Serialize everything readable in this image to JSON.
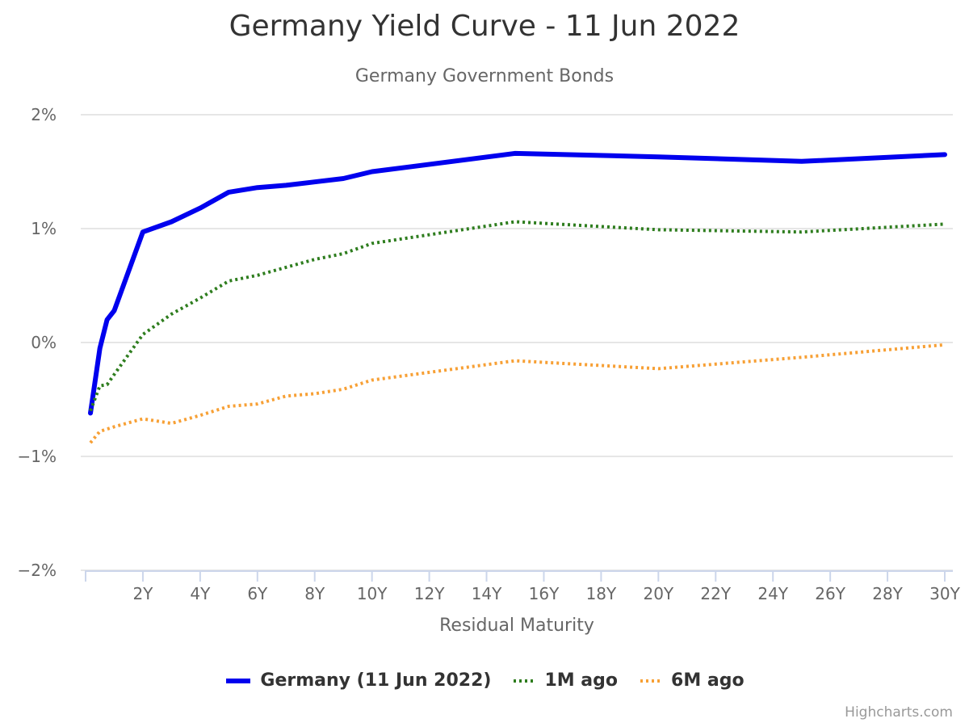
{
  "chart": {
    "title": "Germany Yield Curve - 11 Jun 2022",
    "subtitle": "Germany Government Bonds",
    "credits": "Highcharts.com"
  },
  "chart_data": {
    "type": "line",
    "title": "Germany Yield Curve - 11 Jun 2022",
    "subtitle": "Germany Government Bonds",
    "xlabel": "Residual Maturity",
    "ylabel": "",
    "xlim": [
      0,
      30
    ],
    "ylim": [
      -2,
      2
    ],
    "x_ticks": [
      2,
      4,
      6,
      8,
      10,
      12,
      14,
      16,
      18,
      20,
      22,
      24,
      26,
      28,
      30
    ],
    "x_tick_labels": [
      "2Y",
      "4Y",
      "6Y",
      "8Y",
      "10Y",
      "12Y",
      "14Y",
      "16Y",
      "18Y",
      "20Y",
      "22Y",
      "24Y",
      "26Y",
      "28Y",
      "30Y"
    ],
    "y_ticks": [
      -2,
      -1,
      0,
      1,
      2
    ],
    "y_tick_labels": [
      "−2%",
      "−1%",
      "0%",
      "1%",
      "2%"
    ],
    "grid": true,
    "legend_position": "bottom-center",
    "series": [
      {
        "name": "Germany (11 Jun 2022)",
        "color": "#0000ee",
        "dash": "solid",
        "points": [
          [
            0.17,
            -0.62
          ],
          [
            0.25,
            -0.48
          ],
          [
            0.5,
            -0.05
          ],
          [
            0.75,
            0.2
          ],
          [
            1,
            0.28
          ],
          [
            2,
            0.97
          ],
          [
            3,
            1.06
          ],
          [
            4,
            1.18
          ],
          [
            5,
            1.32
          ],
          [
            6,
            1.36
          ],
          [
            7,
            1.38
          ],
          [
            8,
            1.41
          ],
          [
            9,
            1.44
          ],
          [
            10,
            1.5
          ],
          [
            15,
            1.66
          ],
          [
            20,
            1.63
          ],
          [
            25,
            1.59
          ],
          [
            30,
            1.65
          ]
        ]
      },
      {
        "name": "1M ago",
        "color": "#2e7d1e",
        "dash": "dotted",
        "points": [
          [
            0.17,
            -0.6
          ],
          [
            0.5,
            -0.38
          ],
          [
            0.75,
            -0.37
          ],
          [
            1,
            -0.28
          ],
          [
            2,
            0.07
          ],
          [
            3,
            0.25
          ],
          [
            4,
            0.39
          ],
          [
            5,
            0.54
          ],
          [
            6,
            0.59
          ],
          [
            7,
            0.66
          ],
          [
            8,
            0.73
          ],
          [
            9,
            0.78
          ],
          [
            10,
            0.87
          ],
          [
            15,
            1.06
          ],
          [
            20,
            0.99
          ],
          [
            25,
            0.97
          ],
          [
            30,
            1.04
          ]
        ]
      },
      {
        "name": "6M ago",
        "color": "#f7a035",
        "dash": "dotted",
        "points": [
          [
            0.17,
            -0.88
          ],
          [
            0.5,
            -0.78
          ],
          [
            1,
            -0.74
          ],
          [
            2,
            -0.67
          ],
          [
            3,
            -0.71
          ],
          [
            4,
            -0.64
          ],
          [
            5,
            -0.56
          ],
          [
            6,
            -0.54
          ],
          [
            7,
            -0.47
          ],
          [
            8,
            -0.45
          ],
          [
            9,
            -0.41
          ],
          [
            10,
            -0.33
          ],
          [
            15,
            -0.16
          ],
          [
            20,
            -0.23
          ],
          [
            25,
            -0.13
          ],
          [
            30,
            -0.02
          ]
        ]
      }
    ]
  }
}
